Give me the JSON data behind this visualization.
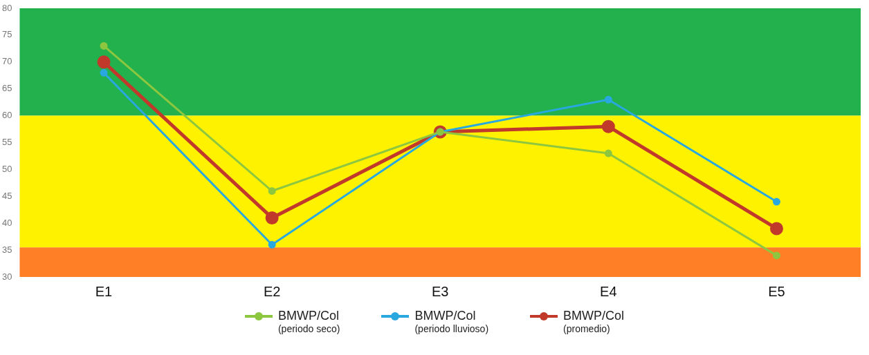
{
  "chart_data": {
    "type": "line",
    "categories": [
      "E1",
      "E2",
      "E3",
      "E4",
      "E5"
    ],
    "series": [
      {
        "name": "BMWP/Col (periodo seco)",
        "color": "#8dc63f",
        "values": [
          73,
          46,
          57,
          53,
          34
        ]
      },
      {
        "name": "BMWP/Col (periodo lluvioso)",
        "color": "#29a8e0",
        "values": [
          68,
          36,
          57,
          63,
          44
        ]
      },
      {
        "name": "BMWP/Col (promedio)",
        "color": "#c0392b",
        "values": [
          70,
          41,
          57,
          58,
          39
        ]
      }
    ],
    "ylim": [
      30,
      80
    ],
    "yticks": [
      30,
      35,
      40,
      45,
      50,
      55,
      60,
      65,
      70,
      75,
      80
    ],
    "bands": [
      {
        "axis": "y",
        "from": 60,
        "to": 80,
        "color": "#22b14c"
      },
      {
        "axis": "y",
        "from": 35.5,
        "to": 60,
        "color": "#fff200"
      },
      {
        "axis": "y",
        "from": 30,
        "to": 35.5,
        "color": "#ff7f27"
      }
    ],
    "grid": false,
    "legend": "bottom",
    "marker": "circle",
    "line_style": "solid"
  }
}
